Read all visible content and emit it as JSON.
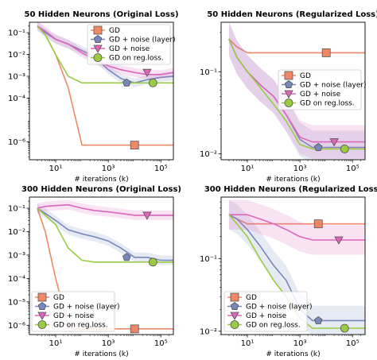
{
  "series_styles": [
    {
      "key": "gd",
      "color": "#ee8866",
      "marker": "square"
    },
    {
      "key": "gd_noise_layer",
      "color": "#7788bb",
      "marker": "pentagon"
    },
    {
      "key": "gd_noise",
      "color": "#dd66bb",
      "marker": "triangle-down"
    },
    {
      "key": "gd_reg",
      "color": "#99cc44",
      "marker": "circle"
    }
  ],
  "chart_data": [
    {
      "type": "line",
      "title": "50 Hidden Neurons (Original Loss)",
      "xlabel": "# iterations (k)",
      "ylabel": "",
      "xscale": "log",
      "yscale": "log",
      "xlim": [
        1,
        300000
      ],
      "ylim": [
        1.5e-07,
        0.3
      ],
      "xticks": [
        {
          "v": 10,
          "label": "10¹"
        },
        {
          "v": 1000,
          "label": "10³"
        },
        {
          "v": 100000,
          "label": "10⁵"
        }
      ],
      "yticks": [
        {
          "v": 0.1,
          "label": "10⁻¹"
        },
        {
          "v": 0.01,
          "label": "10⁻²"
        },
        {
          "v": 0.001,
          "label": "10⁻³"
        },
        {
          "v": 0.0001,
          "label": "10⁻⁴"
        },
        {
          "v": 1e-06,
          "label": "10⁻⁶"
        }
      ],
      "legend": "top-right",
      "series": [
        {
          "name": "GD",
          "x": [
            2,
            4,
            10,
            30,
            100,
            300,
            1000,
            10000,
            100000,
            300000
          ],
          "y": [
            0.2,
            0.08,
            0.01,
            0.0003,
            7e-07,
            7e-07,
            7e-07,
            7e-07,
            7e-07,
            7e-07
          ],
          "marker_x": 10000,
          "marker_y": 7e-07
        },
        {
          "name": "GD + noise (layer)",
          "x": [
            2,
            4,
            10,
            30,
            100,
            300,
            1000,
            3000,
            10000,
            30000,
            100000,
            300000
          ],
          "y": [
            0.2,
            0.1,
            0.05,
            0.03,
            0.015,
            0.008,
            0.002,
            0.0008,
            0.0005,
            0.0007,
            0.0009,
            0.001
          ],
          "marker_x": 5000,
          "marker_y": 0.0005
        },
        {
          "name": "GD + noise",
          "x": [
            2,
            4,
            10,
            30,
            100,
            300,
            1000,
            3000,
            10000,
            30000,
            100000,
            300000
          ],
          "y": [
            0.2,
            0.12,
            0.05,
            0.03,
            0.012,
            0.006,
            0.003,
            0.002,
            0.0015,
            0.0012,
            0.0012,
            0.0015
          ],
          "marker_x": 30000,
          "marker_y": 0.0015
        },
        {
          "name": "GD on reg.loss.",
          "x": [
            2,
            4,
            10,
            30,
            100,
            300,
            1000,
            10000,
            100000,
            300000
          ],
          "y": [
            0.2,
            0.08,
            0.01,
            0.001,
            0.0005,
            0.0005,
            0.0005,
            0.0005,
            0.0005,
            0.0005
          ],
          "marker_x": 50000,
          "marker_y": 0.0005
        }
      ]
    },
    {
      "type": "line",
      "title": "50 Hidden Neurons (Regularized Loss)",
      "xlabel": "# iterations (k)",
      "ylabel": "",
      "xscale": "log",
      "yscale": "log",
      "xlim": [
        1,
        300000
      ],
      "ylim": [
        0.0085,
        0.4
      ],
      "xticks": [
        {
          "v": 10,
          "label": "10¹"
        },
        {
          "v": 1000,
          "label": "10³"
        },
        {
          "v": 100000,
          "label": "10⁵"
        }
      ],
      "yticks": [
        {
          "v": 0.1,
          "label": "10⁻¹"
        },
        {
          "v": 0.01,
          "label": "10⁻²"
        }
      ],
      "legend": "center-right",
      "series": [
        {
          "name": "GD",
          "x": [
            2,
            4,
            10,
            30,
            300000
          ],
          "y": [
            0.25,
            0.2,
            0.17,
            0.17,
            0.17
          ],
          "marker_x": 10000,
          "marker_y": 0.17
        },
        {
          "name": "GD + noise (layer)",
          "x": [
            2,
            4,
            10,
            30,
            100,
            300,
            1000,
            3000,
            10000,
            100000,
            300000
          ],
          "y": [
            0.25,
            0.15,
            0.1,
            0.07,
            0.05,
            0.03,
            0.015,
            0.012,
            0.012,
            0.012,
            0.012
          ],
          "marker_x": 5000,
          "marker_y": 0.012
        },
        {
          "name": "GD + noise",
          "x": [
            2,
            4,
            10,
            30,
            100,
            300,
            1000,
            3000,
            10000,
            30000,
            100000,
            300000
          ],
          "y": [
            0.25,
            0.15,
            0.1,
            0.07,
            0.05,
            0.03,
            0.016,
            0.014,
            0.014,
            0.014,
            0.014,
            0.014
          ],
          "marker_x": 20000,
          "marker_y": 0.014
        },
        {
          "name": "GD on reg.loss.",
          "x": [
            2,
            4,
            10,
            30,
            100,
            300,
            1000,
            3000,
            10000,
            100000,
            300000
          ],
          "y": [
            0.25,
            0.15,
            0.1,
            0.065,
            0.04,
            0.025,
            0.013,
            0.0115,
            0.0115,
            0.0115,
            0.0115
          ],
          "marker_x": 50000,
          "marker_y": 0.0115
        }
      ]
    },
    {
      "type": "line",
      "title": "300 Hidden Neurons (Original Loss)",
      "xlabel": "# iterations (k)",
      "ylabel": "",
      "xscale": "log",
      "yscale": "log",
      "xlim": [
        1,
        300000
      ],
      "ylim": [
        4e-07,
        0.3
      ],
      "xticks": [
        {
          "v": 10,
          "label": "10¹"
        },
        {
          "v": 1000,
          "label": "10³"
        },
        {
          "v": 100000,
          "label": "10⁵"
        }
      ],
      "yticks": [
        {
          "v": 0.1,
          "label": "10⁻¹"
        },
        {
          "v": 0.01,
          "label": "10⁻²"
        },
        {
          "v": 0.001,
          "label": "10⁻³"
        },
        {
          "v": 0.0001,
          "label": "10⁻⁴"
        },
        {
          "v": 1e-05,
          "label": "10⁻⁵"
        },
        {
          "v": 1e-06,
          "label": "10⁻⁶"
        }
      ],
      "legend": "bottom-left",
      "series": [
        {
          "name": "GD",
          "x": [
            2,
            4,
            10,
            20,
            30,
            50,
            300000
          ],
          "y": [
            0.1,
            0.01,
            0.0001,
            5e-06,
            8e-07,
            7e-07,
            7e-07
          ],
          "marker_x": 10000,
          "marker_y": 7e-07
        },
        {
          "name": "GD + noise (layer)",
          "x": [
            2,
            4,
            10,
            30,
            100,
            300,
            1000,
            3000,
            10000,
            30000,
            100000,
            300000
          ],
          "y": [
            0.1,
            0.06,
            0.03,
            0.012,
            0.008,
            0.006,
            0.004,
            0.002,
            0.0008,
            0.0008,
            0.0006,
            0.0006
          ],
          "marker_x": 5000,
          "marker_y": 0.0008
        },
        {
          "name": "GD + noise",
          "x": [
            2,
            4,
            10,
            30,
            100,
            300,
            1000,
            3000,
            10000,
            30000,
            100000,
            300000
          ],
          "y": [
            0.1,
            0.12,
            0.13,
            0.14,
            0.1,
            0.08,
            0.07,
            0.06,
            0.05,
            0.05,
            0.05,
            0.05
          ],
          "marker_x": 30000,
          "marker_y": 0.05
        },
        {
          "name": "GD on reg.loss.",
          "x": [
            2,
            4,
            10,
            30,
            100,
            300,
            1000,
            10000,
            100000,
            300000
          ],
          "y": [
            0.1,
            0.05,
            0.02,
            0.002,
            0.0006,
            0.0005,
            0.0005,
            0.0005,
            0.0005,
            0.0005
          ],
          "marker_x": 50000,
          "marker_y": 0.0005
        }
      ]
    },
    {
      "type": "line",
      "title": "300 Hidden Neurons (Regularized Loss)",
      "xlabel": "# iterations (k)",
      "ylabel": "",
      "xscale": "log",
      "yscale": "log",
      "xlim": [
        1,
        300000
      ],
      "ylim": [
        0.009,
        0.7
      ],
      "xticks": [
        {
          "v": 10,
          "label": "10¹"
        },
        {
          "v": 1000,
          "label": "10³"
        },
        {
          "v": 100000,
          "label": "10⁵"
        }
      ],
      "yticks": [
        {
          "v": 0.1,
          "label": "10⁻¹"
        },
        {
          "v": 0.01,
          "label": "10⁻²"
        }
      ],
      "legend": "bottom-left",
      "series": [
        {
          "name": "GD",
          "x": [
            2,
            4,
            10,
            30,
            300000
          ],
          "y": [
            0.4,
            0.35,
            0.3,
            0.3,
            0.3
          ],
          "marker_x": 5000,
          "marker_y": 0.3
        },
        {
          "name": "GD + noise (layer)",
          "x": [
            2,
            4,
            10,
            30,
            100,
            300,
            1000,
            3000,
            10000,
            100000,
            300000
          ],
          "y": [
            0.4,
            0.35,
            0.25,
            0.15,
            0.08,
            0.05,
            0.02,
            0.014,
            0.014,
            0.014,
            0.014
          ],
          "marker_x": 5000,
          "marker_y": 0.014
        },
        {
          "name": "GD + noise",
          "x": [
            2,
            4,
            10,
            30,
            100,
            300,
            1000,
            3000,
            10000,
            30000,
            100000,
            300000
          ],
          "y": [
            0.4,
            0.4,
            0.4,
            0.35,
            0.3,
            0.25,
            0.2,
            0.18,
            0.18,
            0.18,
            0.18,
            0.18
          ],
          "marker_x": 30000,
          "marker_y": 0.18
        },
        {
          "name": "GD on reg.loss.",
          "x": [
            2,
            4,
            10,
            30,
            100,
            300,
            1000,
            3000,
            10000,
            100000,
            300000
          ],
          "y": [
            0.4,
            0.3,
            0.2,
            0.1,
            0.05,
            0.03,
            0.015,
            0.011,
            0.011,
            0.011,
            0.011
          ],
          "marker_x": 50000,
          "marker_y": 0.011
        }
      ]
    }
  ]
}
